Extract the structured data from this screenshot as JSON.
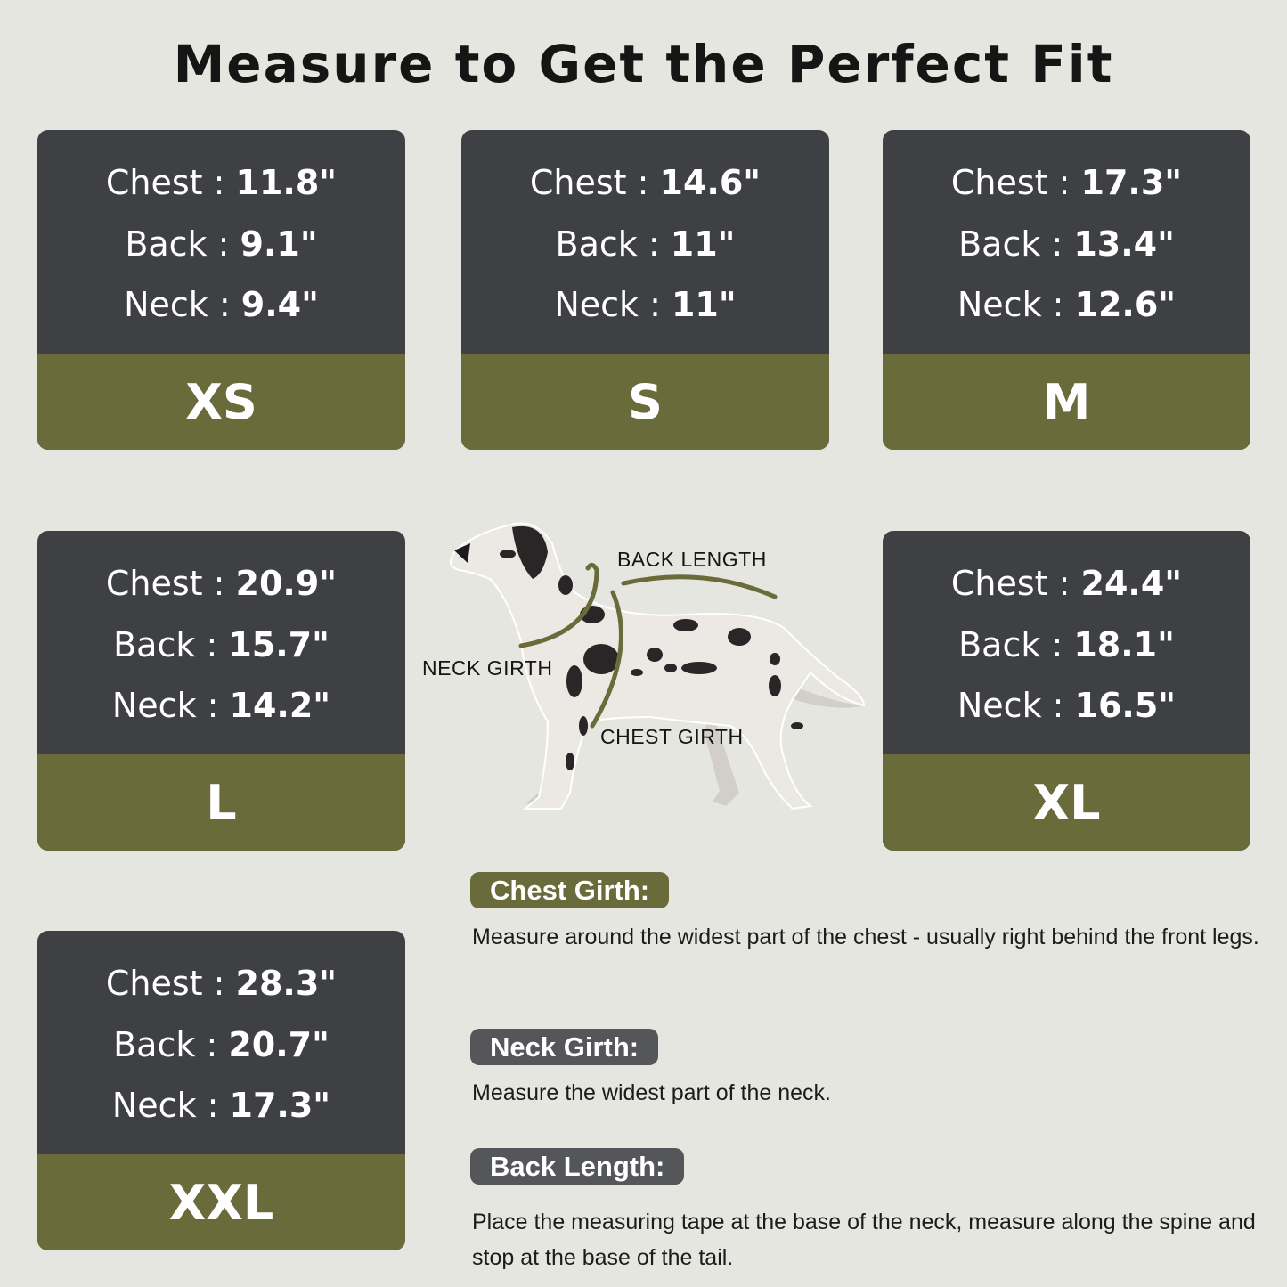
{
  "title": "Measure to Get the Perfect Fit",
  "colors": {
    "background": "#e6e6e1",
    "card_dark": "#3f4044",
    "accent_olive": "#6a6b3a"
  },
  "separator": " : ",
  "labels": {
    "chest": "Chest",
    "back": "Back",
    "neck": "Neck"
  },
  "sizes": [
    {
      "size": "XS",
      "chest": "11.8\"",
      "back": "9.1\"",
      "neck": "9.4\""
    },
    {
      "size": "S",
      "chest": "14.6\"",
      "back": "11\"",
      "neck": "11\""
    },
    {
      "size": "M",
      "chest": "17.3\"",
      "back": "13.4\"",
      "neck": "12.6\""
    },
    {
      "size": "L",
      "chest": "20.9\"",
      "back": "15.7\"",
      "neck": "14.2\""
    },
    {
      "size": "XL",
      "chest": "24.4\"",
      "back": "18.1\"",
      "neck": "16.5\""
    },
    {
      "size": "XXL",
      "chest": "28.3\"",
      "back": "20.7\"",
      "neck": "17.3\""
    }
  ],
  "diagram": {
    "back_length": "BACK LENGTH",
    "neck_girth": "NECK GIRTH",
    "chest_girth": "CHEST GIRTH"
  },
  "guide": [
    {
      "heading": "Chest Girth:",
      "text": "Measure around the widest part of the chest - usually right behind the front legs."
    },
    {
      "heading": "Neck Girth:",
      "text": "Measure the widest part of the neck."
    },
    {
      "heading": "Back Length:",
      "text": "Place the measuring tape at the base of the neck, measure along the spine and stop at the base of the tail."
    }
  ]
}
